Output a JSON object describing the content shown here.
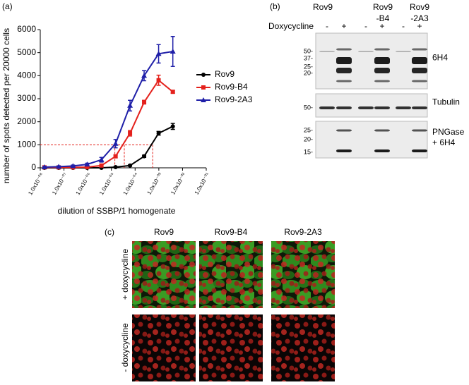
{
  "chart_data": {
    "type": "line",
    "label": "(a)",
    "x_label": "dilution of SSBP/1 homogenate",
    "y_label": "number of spots detected per 20000 cells",
    "x": [
      1.5e-08,
      6e-08,
      2.4e-07,
      9.5e-07,
      3.8e-06,
      1.5e-05,
      6.1e-05,
      0.00024,
      0.00098,
      0.0039
    ],
    "series": [
      {
        "name": "Rov9",
        "color": "#000000",
        "marker": "circle",
        "values": [
          0,
          0,
          0,
          0,
          0,
          30,
          100,
          500,
          1500,
          1800
        ],
        "errors": [
          0,
          0,
          0,
          0,
          0,
          20,
          30,
          50,
          80,
          130
        ]
      },
      {
        "name": "Rov9-B4",
        "color": "#e4211c",
        "marker": "square",
        "values": [
          20,
          20,
          20,
          30,
          100,
          500,
          1500,
          2850,
          3800,
          3300
        ],
        "errors": [
          20,
          20,
          20,
          20,
          40,
          60,
          120,
          80,
          220,
          60
        ]
      },
      {
        "name": "Rov9-2A3",
        "color": "#1f1fa8",
        "marker": "triangle",
        "values": [
          30,
          50,
          80,
          150,
          350,
          1050,
          2700,
          4000,
          4950,
          5050
        ],
        "errors": [
          30,
          30,
          40,
          50,
          100,
          180,
          230,
          220,
          400,
          650
        ]
      }
    ],
    "xscale": "log",
    "xlim": [
      1e-08,
      0.1
    ],
    "xticks": [
      {
        "value": 1e-08,
        "label": "1.0x10⁻⁰⁸"
      },
      {
        "value": 1e-07,
        "label": "1.0x10⁻⁰⁷"
      },
      {
        "value": 1e-06,
        "label": "1.0x10⁻⁰⁶"
      },
      {
        "value": 1e-05,
        "label": "1.0x10⁻⁰⁵"
      },
      {
        "value": 0.0001,
        "label": "1.0x10⁻⁰⁴"
      },
      {
        "value": 0.001,
        "label": "1.0x10⁻⁰³"
      },
      {
        "value": 0.01,
        "label": "1.0x10⁻⁰²"
      },
      {
        "value": 0.1,
        "label": "1.0x10⁻⁰¹"
      }
    ],
    "ylim": [
      0,
      6000
    ],
    "yticks": [
      0,
      1000,
      2000,
      3000,
      4000,
      5000,
      6000
    ],
    "reference_y": 1000,
    "reference_x": [
      1.4e-05,
      3.5e-05,
      0.00055
    ],
    "reference_color": "#e4211c",
    "legend": "right"
  },
  "blot": {
    "label": "(b)",
    "treatment": "Doxycycline",
    "groups": [
      [
        "Rov9"
      ],
      [
        "Rov9",
        "-B4"
      ],
      [
        "Rov9",
        "-2A3"
      ]
    ],
    "signs": [
      "-",
      "+",
      "-",
      "+",
      "-",
      "+"
    ],
    "panels": [
      {
        "name": [
          "6H4"
        ],
        "markers": [
          "50-",
          "37-",
          "25-",
          "20-"
        ]
      },
      {
        "name": [
          "Tubulin"
        ],
        "markers": [
          "50-"
        ]
      },
      {
        "name": [
          "PNGase",
          "+ 6H4"
        ],
        "markers": [
          "25-",
          "20-",
          "15-"
        ]
      }
    ]
  },
  "microscopy": {
    "label": "(c)",
    "columns": [
      "Rov9",
      "Rov9-B4",
      "Rov9-2A3"
    ],
    "rows": [
      "+ doxycycline",
      "- doxycycline"
    ]
  }
}
